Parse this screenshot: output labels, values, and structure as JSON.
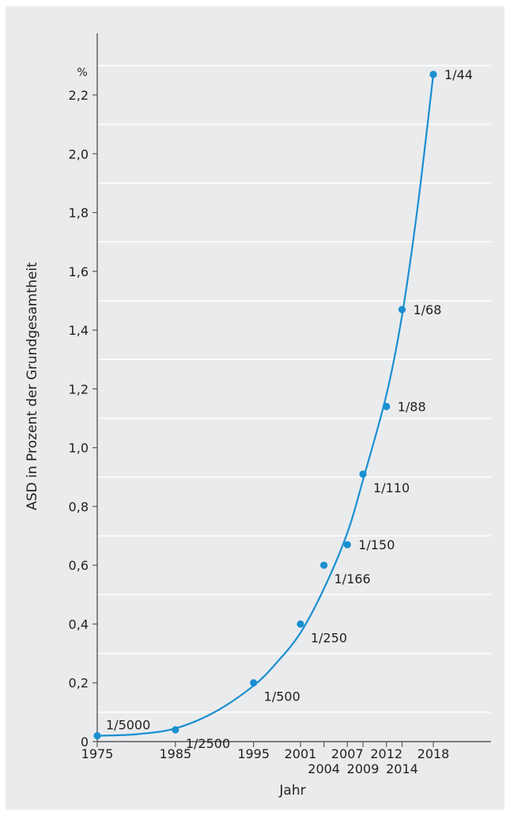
{
  "colors": {
    "background": "#eaebed",
    "curve": "#1a8fd1",
    "point": "#1a8fd1",
    "grid": "#ffffff",
    "axis": "#58595b",
    "text": "#231f20"
  },
  "chart_data": {
    "type": "scatter",
    "title": "",
    "xlabel": "Jahr",
    "ylabel": "ASD in Prozent der Grundgesamtheit",
    "y_unit": "%",
    "xlim": [
      1975,
      2023
    ],
    "ylim": [
      0,
      2.3
    ],
    "grid": "horizontal",
    "x_ticks": [
      {
        "value": 1975,
        "label": "1975",
        "row": 1
      },
      {
        "value": 1985,
        "label": "1985",
        "row": 1
      },
      {
        "value": 1995,
        "label": "1995",
        "row": 1
      },
      {
        "value": 2001,
        "label": "2001",
        "row": 1
      },
      {
        "value": 2004,
        "label": "2004",
        "row": 2
      },
      {
        "value": 2007,
        "label": "2007",
        "row": 1
      },
      {
        "value": 2009,
        "label": "2009",
        "row": 2
      },
      {
        "value": 2012,
        "label": "2012",
        "row": 1
      },
      {
        "value": 2014,
        "label": "2014",
        "row": 2
      },
      {
        "value": 2018,
        "label": "2018",
        "row": 1
      }
    ],
    "y_ticks": [
      {
        "value": 0,
        "label": "0"
      },
      {
        "value": 0.2,
        "label": "0,2"
      },
      {
        "value": 0.4,
        "label": "0,4"
      },
      {
        "value": 0.6,
        "label": "0,6"
      },
      {
        "value": 0.8,
        "label": "0,8"
      },
      {
        "value": 1.0,
        "label": "1,0"
      },
      {
        "value": 1.2,
        "label": "1,2"
      },
      {
        "value": 1.4,
        "label": "1,4"
      },
      {
        "value": 1.6,
        "label": "1,6"
      },
      {
        "value": 1.8,
        "label": "1,8"
      },
      {
        "value": 2.0,
        "label": "2,0"
      },
      {
        "value": 2.2,
        "label": "2,2"
      }
    ],
    "points": [
      {
        "x": 1975,
        "y": 0.02,
        "label": "1/5000",
        "label_pos": "above-right"
      },
      {
        "x": 1985,
        "y": 0.04,
        "label": "1/2500",
        "label_pos": "below-right"
      },
      {
        "x": 1995,
        "y": 0.2,
        "label": "1/500",
        "label_pos": "below-right"
      },
      {
        "x": 2001,
        "y": 0.4,
        "label": "1/250",
        "label_pos": "below-right"
      },
      {
        "x": 2004,
        "y": 0.6,
        "label": "1/166",
        "label_pos": "below-right"
      },
      {
        "x": 2007,
        "y": 0.67,
        "label": "1/150",
        "label_pos": "right"
      },
      {
        "x": 2009,
        "y": 0.91,
        "label": "1/110",
        "label_pos": "below-right"
      },
      {
        "x": 2012,
        "y": 1.14,
        "label": "1/88",
        "label_pos": "right"
      },
      {
        "x": 2014,
        "y": 1.47,
        "label": "1/68",
        "label_pos": "right"
      },
      {
        "x": 2018,
        "y": 2.27,
        "label": "1/44",
        "label_pos": "right"
      }
    ],
    "curve": [
      [
        1975,
        0.02
      ],
      [
        1980,
        0.025
      ],
      [
        1985,
        0.045
      ],
      [
        1990,
        0.1
      ],
      [
        1995,
        0.19
      ],
      [
        1998,
        0.27
      ],
      [
        2001,
        0.37
      ],
      [
        2004,
        0.52
      ],
      [
        2007,
        0.71
      ],
      [
        2009,
        0.89
      ],
      [
        2012,
        1.18
      ],
      [
        2014,
        1.45
      ],
      [
        2016,
        1.82
      ],
      [
        2018,
        2.27
      ]
    ]
  }
}
